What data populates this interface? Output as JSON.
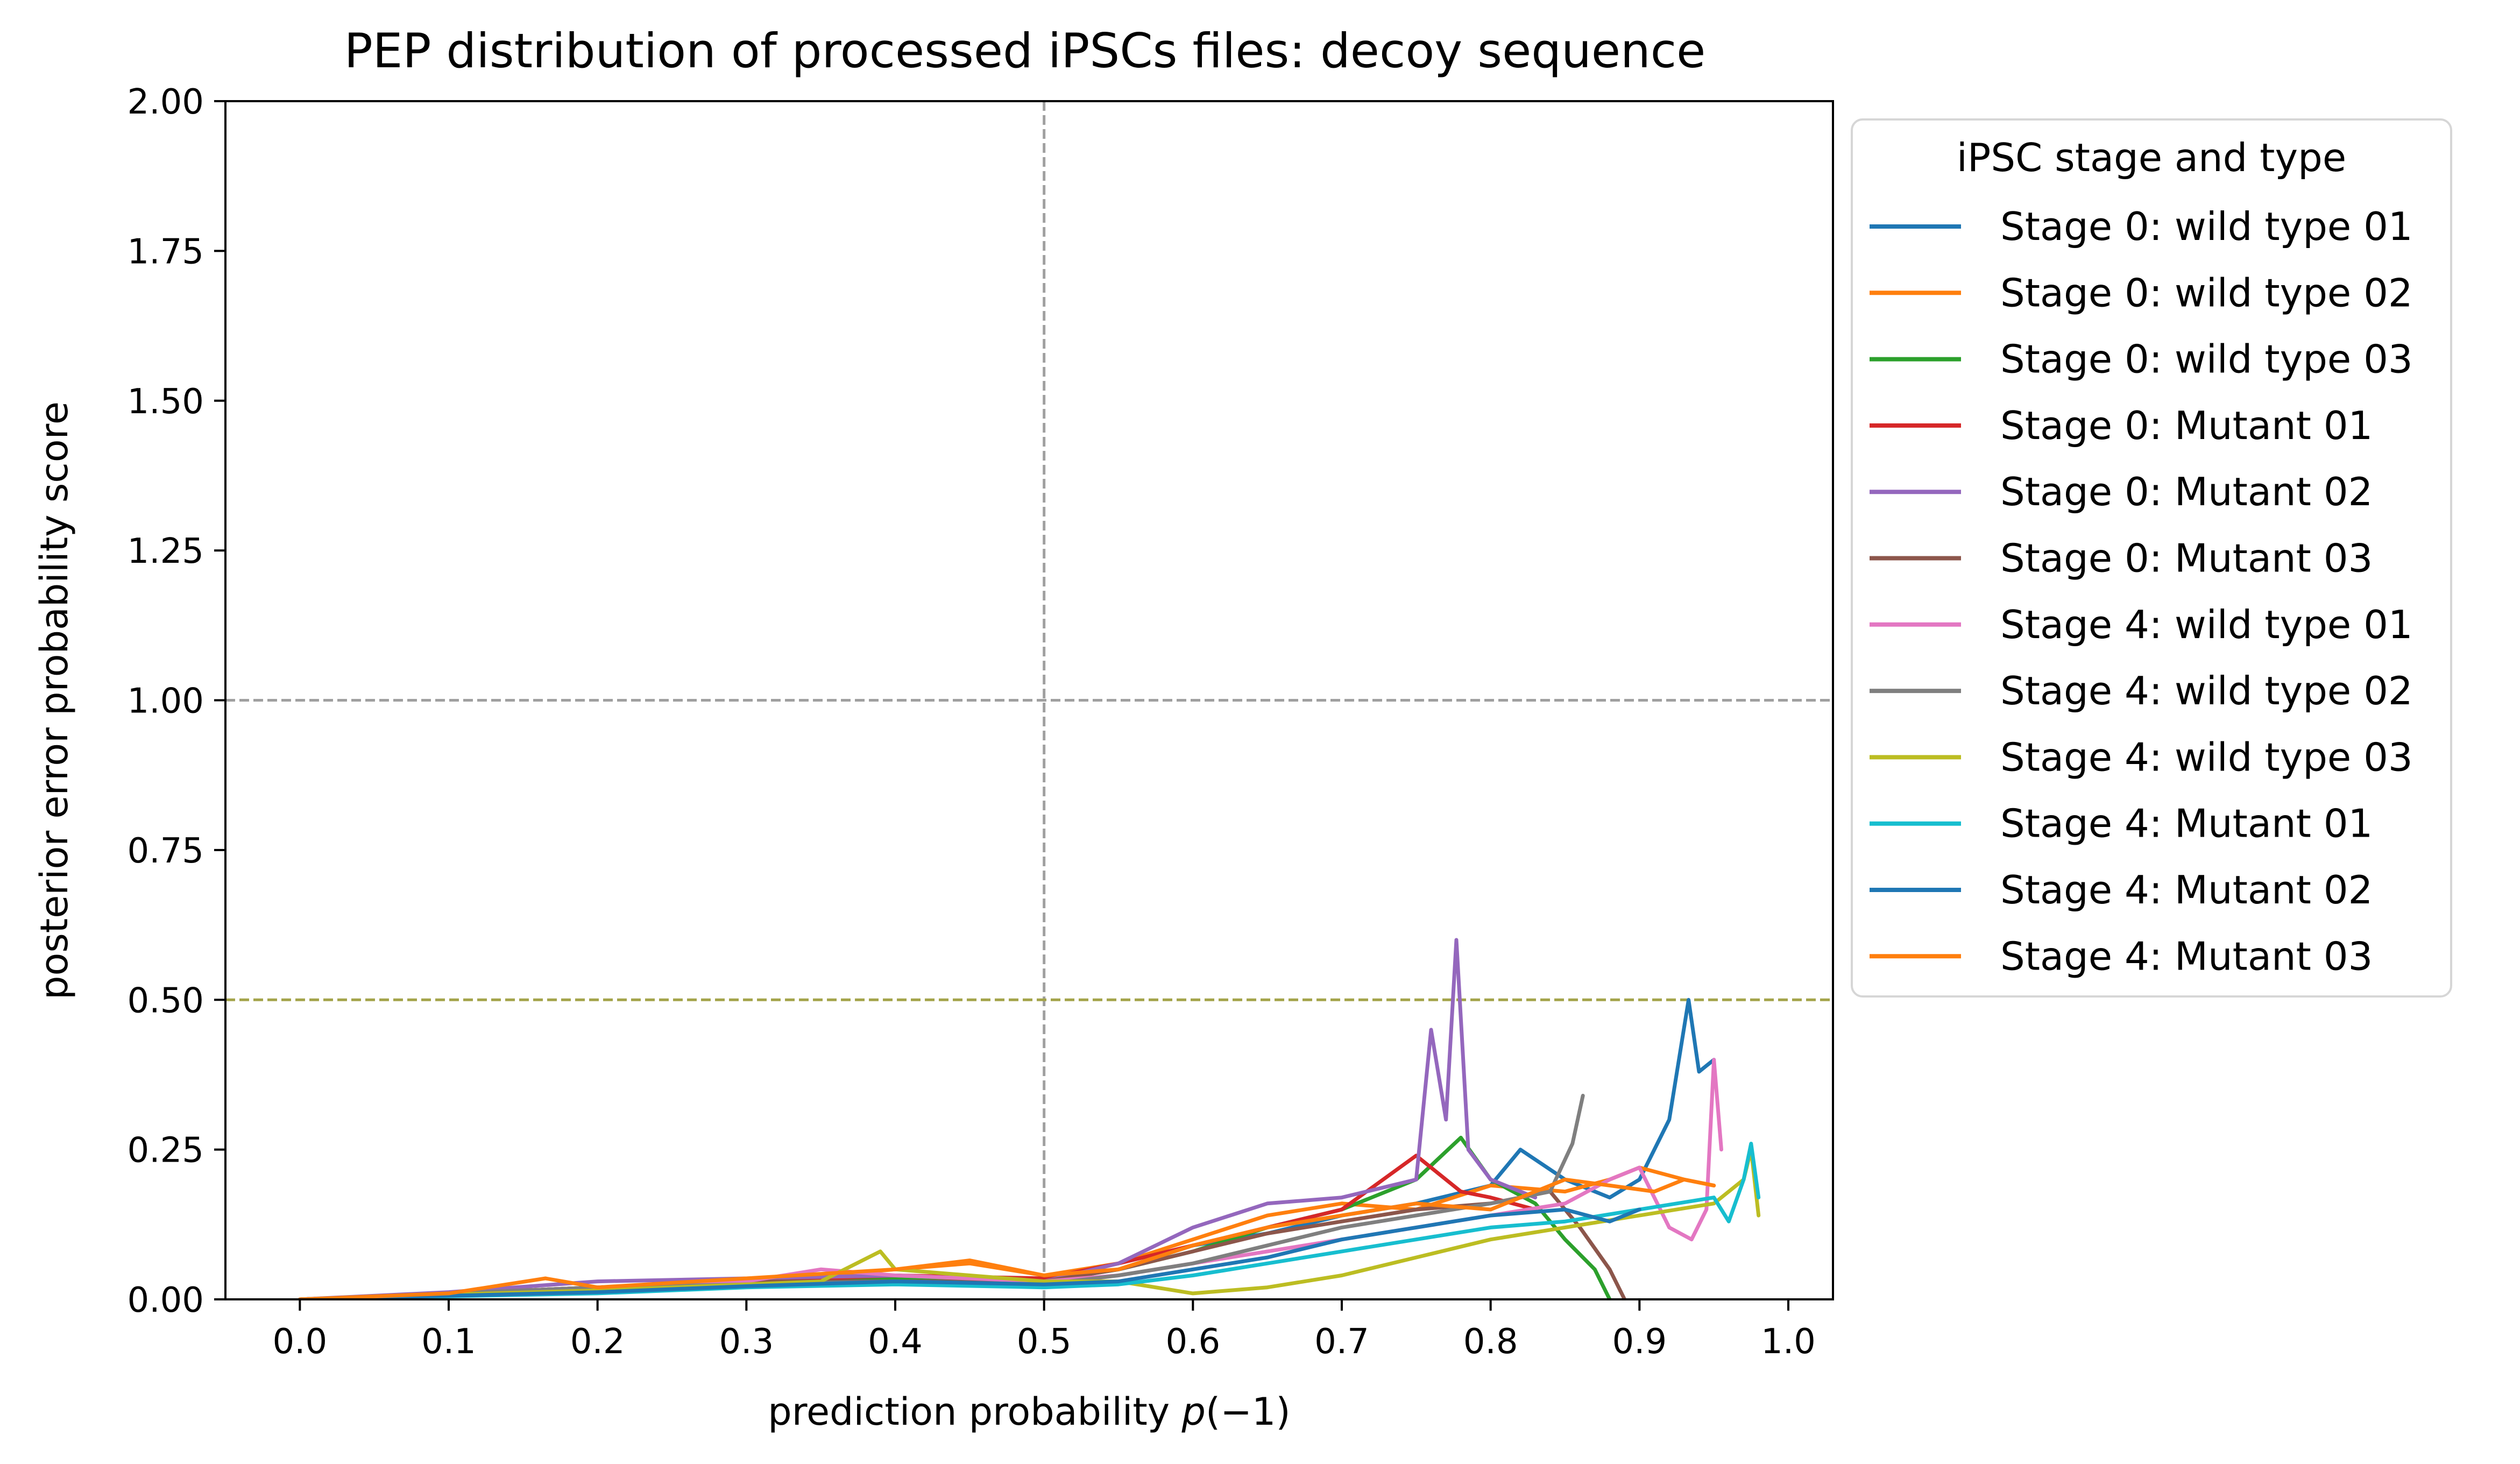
{
  "chart_data": {
    "type": "line",
    "title": "PEP distribution of processed iPSCs files: decoy sequence",
    "xlabel": "prediction probability ",
    "xlabel_math": "p",
    "xlabel_suffix": "(−1)",
    "ylabel": "posterior error probability score",
    "xlim": [
      -0.05,
      1.03
    ],
    "ylim": [
      0,
      2.0
    ],
    "x_ticks": [
      0.0,
      0.1,
      0.2,
      0.3,
      0.4,
      0.5,
      0.6,
      0.7,
      0.8,
      0.9,
      1.0
    ],
    "x_tick_labels": [
      "0.0",
      "0.1",
      "0.2",
      "0.3",
      "0.4",
      "0.5",
      "0.6",
      "0.7",
      "0.8",
      "0.9",
      "1.0"
    ],
    "y_ticks": [
      0.0,
      0.25,
      0.5,
      0.75,
      1.0,
      1.25,
      1.5,
      1.75,
      2.0
    ],
    "y_tick_labels": [
      "0.00",
      "0.25",
      "0.50",
      "0.75",
      "1.00",
      "1.25",
      "1.50",
      "1.75",
      "2.00"
    ],
    "reference_lines": [
      {
        "orientation": "vertical",
        "value": 0.5,
        "color": "#a0a0a0"
      },
      {
        "orientation": "horizontal",
        "value": 1.0,
        "color": "#a0a0a0"
      },
      {
        "orientation": "horizontal",
        "value": 0.5,
        "color": "#a3a34a"
      }
    ],
    "legend": {
      "title": "iPSC stage and type",
      "position": "outside-right"
    },
    "grid": false,
    "series": [
      {
        "name": "Stage 0: wild type 01",
        "color": "#1f77b4",
        "points": [
          [
            0.0,
            0.0
          ],
          [
            0.1,
            0.008
          ],
          [
            0.2,
            0.018
          ],
          [
            0.3,
            0.03
          ],
          [
            0.4,
            0.04
          ],
          [
            0.5,
            0.03
          ],
          [
            0.55,
            0.05
          ],
          [
            0.6,
            0.09
          ],
          [
            0.65,
            0.11
          ],
          [
            0.7,
            0.14
          ],
          [
            0.75,
            0.16
          ],
          [
            0.8,
            0.19
          ],
          [
            0.82,
            0.25
          ],
          [
            0.85,
            0.2
          ],
          [
            0.88,
            0.17
          ],
          [
            0.9,
            0.2
          ],
          [
            0.92,
            0.3
          ],
          [
            0.933,
            0.5
          ],
          [
            0.94,
            0.38
          ],
          [
            0.95,
            0.4
          ]
        ]
      },
      {
        "name": "Stage 0: wild type 02",
        "color": "#ff7f0e",
        "points": [
          [
            0.0,
            0.0
          ],
          [
            0.1,
            0.01
          ],
          [
            0.2,
            0.02
          ],
          [
            0.3,
            0.03
          ],
          [
            0.4,
            0.05
          ],
          [
            0.45,
            0.06
          ],
          [
            0.5,
            0.04
          ],
          [
            0.55,
            0.06
          ],
          [
            0.6,
            0.1
          ],
          [
            0.65,
            0.14
          ],
          [
            0.7,
            0.16
          ],
          [
            0.75,
            0.15
          ],
          [
            0.8,
            0.19
          ],
          [
            0.85,
            0.18
          ],
          [
            0.88,
            0.2
          ],
          [
            0.9,
            0.22
          ],
          [
            0.93,
            0.2
          ],
          [
            0.95,
            0.19
          ]
        ]
      },
      {
        "name": "Stage 0: wild type 03",
        "color": "#2ca02c",
        "points": [
          [
            0.0,
            0.0
          ],
          [
            0.1,
            0.01
          ],
          [
            0.2,
            0.02
          ],
          [
            0.3,
            0.03
          ],
          [
            0.4,
            0.035
          ],
          [
            0.5,
            0.03
          ],
          [
            0.55,
            0.05
          ],
          [
            0.6,
            0.08
          ],
          [
            0.65,
            0.12
          ],
          [
            0.7,
            0.15
          ],
          [
            0.75,
            0.2
          ],
          [
            0.78,
            0.27
          ],
          [
            0.8,
            0.2
          ],
          [
            0.83,
            0.16
          ],
          [
            0.85,
            0.1
          ],
          [
            0.87,
            0.05
          ],
          [
            0.88,
            0.0
          ]
        ]
      },
      {
        "name": "Stage 0: Mutant 01",
        "color": "#d62728",
        "points": [
          [
            0.0,
            0.0
          ],
          [
            0.1,
            0.01
          ],
          [
            0.2,
            0.02
          ],
          [
            0.3,
            0.03
          ],
          [
            0.4,
            0.04
          ],
          [
            0.5,
            0.035
          ],
          [
            0.55,
            0.06
          ],
          [
            0.6,
            0.09
          ],
          [
            0.65,
            0.12
          ],
          [
            0.7,
            0.15
          ],
          [
            0.75,
            0.24
          ],
          [
            0.78,
            0.18
          ],
          [
            0.8,
            0.17
          ],
          [
            0.83,
            0.15
          ]
        ]
      },
      {
        "name": "Stage 0: Mutant 02",
        "color": "#9467bd",
        "points": [
          [
            0.0,
            0.0
          ],
          [
            0.1,
            0.012
          ],
          [
            0.2,
            0.03
          ],
          [
            0.3,
            0.035
          ],
          [
            0.4,
            0.04
          ],
          [
            0.5,
            0.03
          ],
          [
            0.55,
            0.06
          ],
          [
            0.6,
            0.12
          ],
          [
            0.65,
            0.16
          ],
          [
            0.7,
            0.17
          ],
          [
            0.75,
            0.2
          ],
          [
            0.76,
            0.45
          ],
          [
            0.77,
            0.3
          ],
          [
            0.777,
            0.6
          ],
          [
            0.785,
            0.25
          ],
          [
            0.8,
            0.2
          ],
          [
            0.83,
            0.17
          ]
        ]
      },
      {
        "name": "Stage 0: Mutant 03",
        "color": "#8c564b",
        "points": [
          [
            0.0,
            0.0
          ],
          [
            0.1,
            0.01
          ],
          [
            0.2,
            0.02
          ],
          [
            0.3,
            0.03
          ],
          [
            0.4,
            0.03
          ],
          [
            0.5,
            0.03
          ],
          [
            0.55,
            0.05
          ],
          [
            0.6,
            0.08
          ],
          [
            0.65,
            0.11
          ],
          [
            0.7,
            0.13
          ],
          [
            0.75,
            0.15
          ],
          [
            0.8,
            0.16
          ],
          [
            0.84,
            0.18
          ],
          [
            0.86,
            0.12
          ],
          [
            0.88,
            0.05
          ],
          [
            0.89,
            0.0
          ]
        ]
      },
      {
        "name": "Stage 4: wild type 01",
        "color": "#e377c2",
        "points": [
          [
            0.0,
            0.0
          ],
          [
            0.1,
            0.01
          ],
          [
            0.2,
            0.02
          ],
          [
            0.3,
            0.03
          ],
          [
            0.35,
            0.05
          ],
          [
            0.4,
            0.04
          ],
          [
            0.5,
            0.03
          ],
          [
            0.55,
            0.04
          ],
          [
            0.6,
            0.06
          ],
          [
            0.65,
            0.08
          ],
          [
            0.7,
            0.1
          ],
          [
            0.75,
            0.12
          ],
          [
            0.8,
            0.14
          ],
          [
            0.85,
            0.16
          ],
          [
            0.88,
            0.2
          ],
          [
            0.9,
            0.22
          ],
          [
            0.92,
            0.12
          ],
          [
            0.935,
            0.1
          ],
          [
            0.945,
            0.15
          ],
          [
            0.95,
            0.4
          ],
          [
            0.955,
            0.25
          ]
        ]
      },
      {
        "name": "Stage 4: wild type 02",
        "color": "#7f7f7f",
        "points": [
          [
            0.0,
            0.0
          ],
          [
            0.1,
            0.01
          ],
          [
            0.2,
            0.02
          ],
          [
            0.3,
            0.025
          ],
          [
            0.4,
            0.03
          ],
          [
            0.5,
            0.025
          ],
          [
            0.55,
            0.04
          ],
          [
            0.6,
            0.06
          ],
          [
            0.65,
            0.09
          ],
          [
            0.7,
            0.12
          ],
          [
            0.75,
            0.14
          ],
          [
            0.8,
            0.16
          ],
          [
            0.84,
            0.18
          ],
          [
            0.855,
            0.26
          ],
          [
            0.862,
            0.34
          ]
        ]
      },
      {
        "name": "Stage 4: wild type 03",
        "color": "#bcbd22",
        "points": [
          [
            0.0,
            0.0
          ],
          [
            0.1,
            0.008
          ],
          [
            0.2,
            0.015
          ],
          [
            0.3,
            0.025
          ],
          [
            0.35,
            0.03
          ],
          [
            0.39,
            0.08
          ],
          [
            0.4,
            0.05
          ],
          [
            0.45,
            0.04
          ],
          [
            0.5,
            0.03
          ],
          [
            0.55,
            0.03
          ],
          [
            0.6,
            0.01
          ],
          [
            0.65,
            0.02
          ],
          [
            0.7,
            0.04
          ],
          [
            0.75,
            0.07
          ],
          [
            0.8,
            0.1
          ],
          [
            0.85,
            0.12
          ],
          [
            0.9,
            0.14
          ],
          [
            0.95,
            0.16
          ],
          [
            0.97,
            0.2
          ],
          [
            0.975,
            0.25
          ],
          [
            0.98,
            0.14
          ]
        ]
      },
      {
        "name": "Stage 4: Mutant 01",
        "color": "#17becf",
        "points": [
          [
            0.0,
            0.0
          ],
          [
            0.1,
            0.005
          ],
          [
            0.2,
            0.01
          ],
          [
            0.3,
            0.02
          ],
          [
            0.4,
            0.025
          ],
          [
            0.5,
            0.02
          ],
          [
            0.55,
            0.025
          ],
          [
            0.6,
            0.04
          ],
          [
            0.65,
            0.06
          ],
          [
            0.7,
            0.08
          ],
          [
            0.75,
            0.1
          ],
          [
            0.8,
            0.12
          ],
          [
            0.85,
            0.13
          ],
          [
            0.9,
            0.15
          ],
          [
            0.95,
            0.17
          ],
          [
            0.96,
            0.13
          ],
          [
            0.97,
            0.2
          ],
          [
            0.975,
            0.26
          ],
          [
            0.98,
            0.17
          ]
        ]
      },
      {
        "name": "Stage 4: Mutant 02",
        "color": "#1f77b4",
        "points": [
          [
            0.0,
            0.0
          ],
          [
            0.1,
            0.006
          ],
          [
            0.2,
            0.012
          ],
          [
            0.3,
            0.022
          ],
          [
            0.4,
            0.03
          ],
          [
            0.5,
            0.025
          ],
          [
            0.55,
            0.03
          ],
          [
            0.6,
            0.05
          ],
          [
            0.65,
            0.07
          ],
          [
            0.7,
            0.1
          ],
          [
            0.75,
            0.12
          ],
          [
            0.8,
            0.14
          ],
          [
            0.85,
            0.15
          ],
          [
            0.88,
            0.13
          ],
          [
            0.9,
            0.15
          ]
        ]
      },
      {
        "name": "Stage 4: Mutant 03",
        "color": "#ff7f0e",
        "points": [
          [
            0.0,
            0.0
          ],
          [
            0.1,
            0.01
          ],
          [
            0.165,
            0.035
          ],
          [
            0.2,
            0.02
          ],
          [
            0.3,
            0.035
          ],
          [
            0.4,
            0.05
          ],
          [
            0.45,
            0.065
          ],
          [
            0.5,
            0.04
          ],
          [
            0.55,
            0.05
          ],
          [
            0.6,
            0.09
          ],
          [
            0.65,
            0.12
          ],
          [
            0.7,
            0.14
          ],
          [
            0.75,
            0.16
          ],
          [
            0.8,
            0.15
          ],
          [
            0.85,
            0.2
          ],
          [
            0.88,
            0.19
          ],
          [
            0.91,
            0.18
          ],
          [
            0.93,
            0.2
          ],
          [
            0.95,
            0.19
          ]
        ]
      }
    ]
  }
}
